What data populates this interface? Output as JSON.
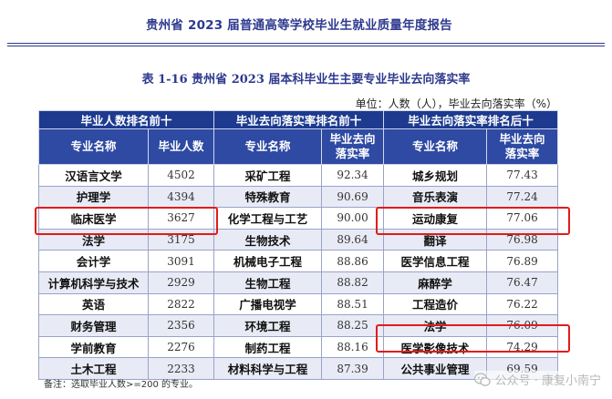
{
  "report_title": "贵州省 2023 届普通高等学校毕业生就业质量年度报告",
  "table_caption": "表 1-16   贵州省 2023 届本科毕业生主要专业毕业去向落实率",
  "unit_note": "单位：人数（人），毕业去向落实率（%）",
  "group_headers": [
    "毕业人数排名前十",
    "毕业去向落实率排名前十",
    "毕业去向落实率排名后十"
  ],
  "column_headers": [
    "专业名称",
    "毕业人数",
    "专业名称",
    "毕业去向\n落实率",
    "专业名称",
    "毕业去向\n落实率"
  ],
  "rows": [
    [
      "汉语言文学",
      "4502",
      "采矿工程",
      "92.34",
      "城乡规划",
      "77.43"
    ],
    [
      "护理学",
      "4394",
      "特殊教育",
      "90.69",
      "音乐表演",
      "77.24"
    ],
    [
      "临床医学",
      "3627",
      "化学工程与工艺",
      "90.00",
      "运动康复",
      "77.06"
    ],
    [
      "法学",
      "3175",
      "生物技术",
      "89.64",
      "翻译",
      "76.98"
    ],
    [
      "会计学",
      "3091",
      "机械电子工程",
      "88.86",
      "医学信息工程",
      "76.89"
    ],
    [
      "计算机科学与技术",
      "2929",
      "生物工程",
      "88.82",
      "麻醉学",
      "76.47"
    ],
    [
      "英语",
      "2822",
      "广播电视学",
      "88.51",
      "工程造价",
      "76.22"
    ],
    [
      "财务管理",
      "2356",
      "环境工程",
      "88.25",
      "法学",
      "76.09"
    ],
    [
      "学前教育",
      "2276",
      "制药工程",
      "88.16",
      "医学影像技术",
      "74.29"
    ],
    [
      "土木工程",
      "2233",
      "材料科学与工程",
      "87.39",
      "公共事业管理",
      "69.59"
    ]
  ],
  "footnote": "备注：选取毕业人数>=200 的专业。",
  "watermark": {
    "text": "公众号 · 康复小南宁",
    "icon": "wechat-icon"
  },
  "colors": {
    "header_dark": "#1d3a8f",
    "header": "#2e4aa3",
    "title": "#2e3a8f",
    "highlight": "#e21b1b",
    "row_alt": "#e8ebf5"
  }
}
